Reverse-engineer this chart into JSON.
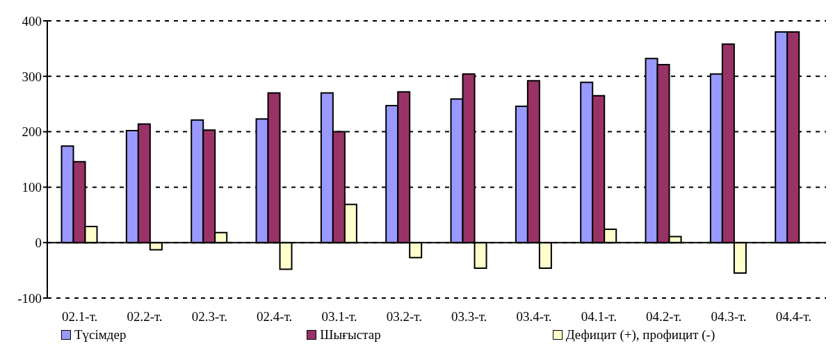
{
  "chart_data": {
    "type": "bar",
    "categories": [
      "02.1-т.",
      "02.2-т.",
      "02.3-т.",
      "02.4-т.",
      "03.1-т.",
      "03.2-т.",
      "03.3-т.",
      "03.4-т.",
      "04.1-т.",
      "04.2-т.",
      "04.3-т.",
      "04.4-т."
    ],
    "series": [
      {
        "name": "Түсімдер",
        "color": "#9999ff",
        "values": [
          174,
          202,
          221,
          223,
          270,
          247,
          259,
          246,
          289,
          332,
          304,
          380
        ]
      },
      {
        "name": "Шығыстар",
        "color": "#993366",
        "values": [
          146,
          214,
          203,
          270,
          200,
          272,
          304,
          292,
          265,
          321,
          358,
          380
        ]
      },
      {
        "name": "Дефицит (+), профицит (-)",
        "color": "#ffffcc",
        "values": [
          29,
          -13,
          18,
          -48,
          69,
          -27,
          -46,
          -46,
          24,
          11,
          -55,
          0
        ]
      }
    ],
    "ylim": [
      -100,
      400
    ],
    "yticks": [
      -100,
      0,
      100,
      200,
      300,
      400
    ],
    "grid": "y",
    "legend": "bottom"
  }
}
